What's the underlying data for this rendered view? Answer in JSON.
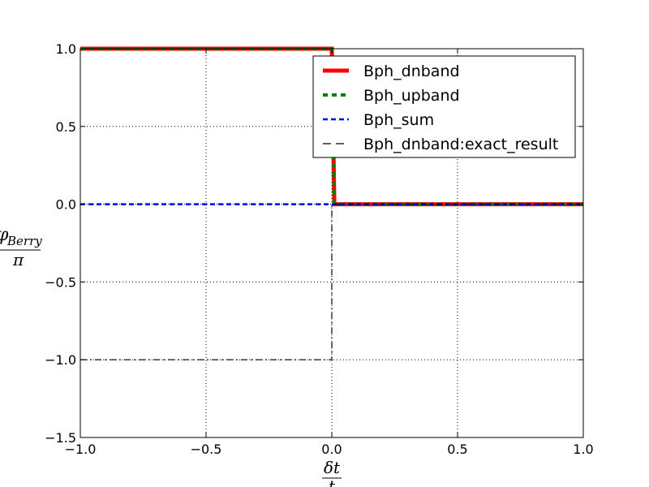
{
  "chart_data": {
    "type": "line",
    "title": "",
    "xlabel": "δt / t",
    "ylabel": "φ_Berry / π",
    "xlabel_parts": {
      "numerator": "δt",
      "denominator": "t"
    },
    "ylabel_parts": {
      "numerator_symbol": "φ",
      "numerator_subscript": "Berry",
      "denominator": "π"
    },
    "xlim": [
      -1.0,
      1.0
    ],
    "ylim": [
      -1.5,
      1.0
    ],
    "xticks": [
      -1.0,
      -0.5,
      0.0,
      0.5,
      1.0
    ],
    "xtick_labels": [
      "−1.0",
      "−0.5",
      "0.0",
      "0.5",
      "1.0"
    ],
    "yticks": [
      -1.5,
      -1.0,
      -0.5,
      0.0,
      0.5,
      1.0
    ],
    "ytick_labels": [
      "−1.5",
      "−1.0",
      "−0.5",
      "0.0",
      "0.5",
      "1.0"
    ],
    "grid": true,
    "legend_position": "top-right",
    "series": [
      {
        "name": "Bph_dnband",
        "color": "#ff0000",
        "style": "solid",
        "x": [
          -1.0,
          0.0,
          0.01,
          1.0
        ],
        "y": [
          1.0,
          1.0,
          0.0,
          0.0
        ]
      },
      {
        "name": "Bph_upband",
        "color": "#008000",
        "style": "dashed",
        "x": [
          -1.0,
          0.0,
          0.01,
          1.0
        ],
        "y": [
          1.0,
          1.0,
          0.0,
          0.0
        ]
      },
      {
        "name": "Bph_sum",
        "color": "#0000ff",
        "style": "dashed",
        "x": [
          -1.0,
          1.0
        ],
        "y": [
          0.0,
          0.0
        ]
      },
      {
        "name": "Bph_dnband:exact_result",
        "color": "#000000",
        "style": "dashdot",
        "x": [
          -1.0,
          0.0,
          0.0,
          1.0
        ],
        "y": [
          -1.0,
          -1.0,
          0.0,
          0.0
        ]
      }
    ]
  }
}
